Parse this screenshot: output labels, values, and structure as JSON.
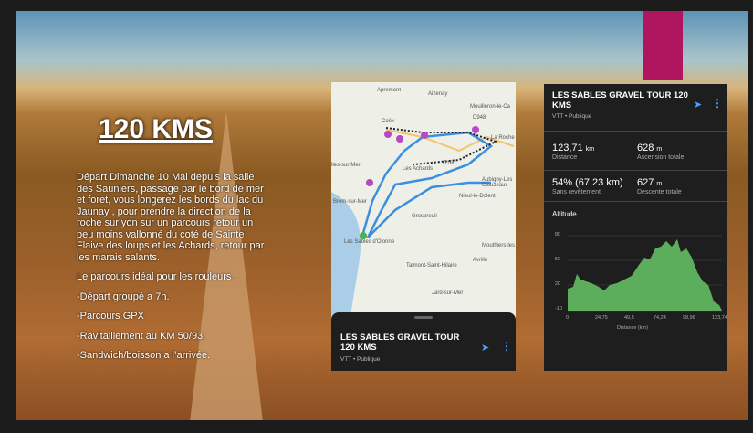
{
  "slide": {
    "title": "120 KMS",
    "paragraphs": [
      "Départ Dimanche 10 Mai depuis la salle des Sauniers, passage par le bord de mer et foret, vous longerez les bords du lac du Jaunay , pour prendre la direction de la roche sur yon sur un parcours retour un peu moins vallonné du coté de Sainte Flaive des loups et les Achards, retour par les marais salants.",
      "Le parcours idéal pour les rouleurs .",
      "-Départ groupé a 7h.",
      "-Parcours GPX",
      "-Ravitaillement au KM 50/93.",
      "-Sandwich/boisson a l’arrivée."
    ]
  },
  "map": {
    "labels": [
      "Apremont",
      "Aizenay",
      "Mouilleron-le-Ca",
      "Coëx",
      "D948",
      "La Roche",
      "Les Achards",
      "D160",
      "Aubigny-Les Clouzeaux",
      "Nieul-le-Dolent",
      "Grosbreuil",
      "Les Sables d'Olonne",
      "Mouthiers-les",
      "Avrillé",
      "Talmont-Saint-Hilaire",
      "Jard-sur-Mer",
      "Brem-sur-Mer",
      "lles-sur-Mer"
    ],
    "card": {
      "title": "LES SABLES GRAVEL TOUR 120 KMS",
      "subtitle": "VTT • Publique"
    }
  },
  "stats_panel": {
    "title": "LES SABLES GRAVEL TOUR 120 KMS",
    "subtitle": "VTT • Publique",
    "stats": [
      {
        "value": "123,71",
        "unit": "km",
        "label": "Distance"
      },
      {
        "value": "628",
        "unit": "m",
        "label": "Ascension totale"
      },
      {
        "value": "54% (67,23 km)",
        "label": "Sans revêtement"
      },
      {
        "value": "627",
        "unit": "m",
        "label": "Descente totale"
      }
    ],
    "chart_title": "Altitude",
    "y_ticks": [
      "80",
      "50",
      "20",
      "-10"
    ],
    "x_ticks": [
      "0",
      "24,75",
      "49,5",
      "74,24",
      "98,98",
      "123,74"
    ],
    "x_label": "Distance (km)"
  }
}
